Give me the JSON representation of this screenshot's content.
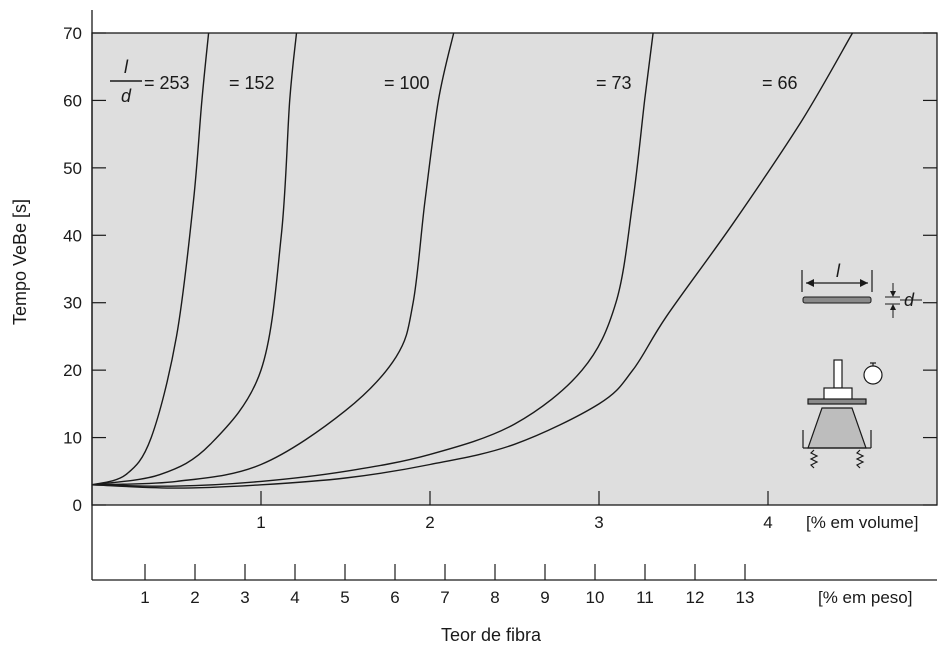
{
  "chart_data": {
    "type": "line",
    "title": "",
    "xlabel": "Teor de fibra",
    "ylabel": "Tempo VeBe [s]",
    "xlim": [
      0,
      5
    ],
    "ylim": [
      0,
      70
    ],
    "grid": false,
    "background": "#dedede",
    "line_color": "#1a1a1a",
    "x_volume_unit": "[% em volume]",
    "x_weight_unit": "[% em peso]",
    "y_ticks": [
      "0",
      "10",
      "20",
      "30",
      "40",
      "50",
      "60",
      "70"
    ],
    "x_volume_ticks": [
      "1",
      "2",
      "3",
      "4"
    ],
    "x_weight_ticks": [
      "1",
      "2",
      "3",
      "4",
      "5",
      "6",
      "7",
      "8",
      "9",
      "10",
      "11",
      "12",
      "13"
    ],
    "ratio_symbol": {
      "numerator": "l",
      "denominator": "d"
    },
    "inset_labels": {
      "length": "l",
      "diameter": "d"
    },
    "series": [
      {
        "label": "= 253",
        "x": [
          0,
          0.2,
          0.35,
          0.5,
          0.6,
          0.65,
          0.69
        ],
        "y": [
          3,
          4.5,
          10,
          25,
          45,
          60,
          70
        ]
      },
      {
        "label": "= 152",
        "x": [
          0,
          0.4,
          0.7,
          1.0,
          1.12,
          1.17,
          1.21
        ],
        "y": [
          3,
          4.5,
          9,
          20,
          40,
          60,
          70
        ]
      },
      {
        "label": "= 100",
        "x": [
          0,
          0.5,
          1.0,
          1.5,
          1.8,
          1.9,
          1.97,
          2.05,
          2.14
        ],
        "y": [
          3,
          3.5,
          6,
          14,
          22,
          30,
          45,
          60,
          70
        ]
      },
      {
        "label": "= 73",
        "x": [
          0,
          0.5,
          1.0,
          1.5,
          2.0,
          2.5,
          2.9,
          3.1,
          3.2,
          3.27,
          3.32
        ],
        "y": [
          3,
          2.8,
          3.5,
          5,
          7.5,
          12,
          20,
          30,
          45,
          60,
          70
        ]
      },
      {
        "label": "= 66",
        "x": [
          0,
          0.5,
          1.0,
          1.5,
          2.0,
          2.5,
          3.0,
          3.2,
          3.4,
          3.8,
          4.2,
          4.5
        ],
        "y": [
          3,
          2.5,
          3,
          4,
          6,
          9,
          15,
          20,
          28,
          42,
          57,
          70
        ]
      }
    ]
  }
}
